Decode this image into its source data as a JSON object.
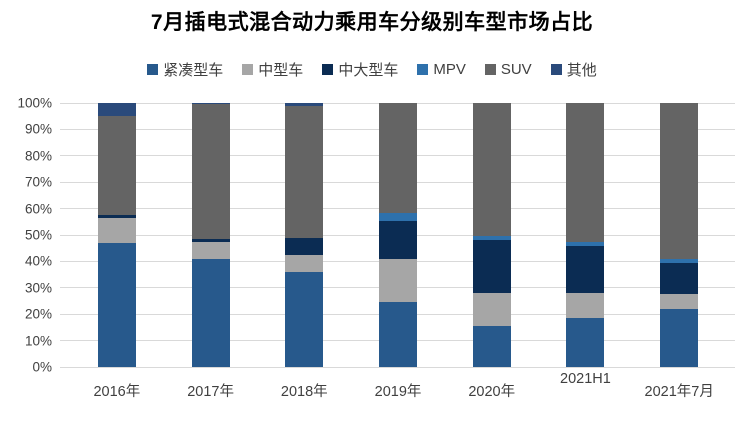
{
  "title": "7月插电式混合动力乘用车分级别车型市场占比",
  "colors": {
    "background": "#ffffff",
    "gridline": "#d9d9d9",
    "axis_text": "#404040",
    "title_text": "#000000"
  },
  "chart_data": {
    "type": "bar",
    "stacked": true,
    "title": "7月插电式混合动力乘用车分级别车型市场占比",
    "categories": [
      "2016年",
      "2017年",
      "2018年",
      "2019年",
      "2020年",
      "2021H1",
      "2021年7月"
    ],
    "series": [
      {
        "name": "紧凑型车",
        "color": "#27598C",
        "values": [
          47,
          41,
          36,
          24.5,
          15.5,
          18.5,
          22
        ]
      },
      {
        "name": "中型车",
        "color": "#A6A6A6",
        "values": [
          9.5,
          6.5,
          6.5,
          16.5,
          12.5,
          9.5,
          5.5
        ]
      },
      {
        "name": "中大型车",
        "color": "#0B2C53",
        "values": [
          1,
          1,
          6.5,
          14.5,
          20,
          18,
          12
        ]
      },
      {
        "name": "MPV",
        "color": "#2E71AC",
        "values": [
          0,
          0,
          0,
          3,
          1.5,
          1.5,
          1.5
        ]
      },
      {
        "name": "SUV",
        "color": "#646464",
        "values": [
          37.5,
          51,
          50,
          41.5,
          50.5,
          52.5,
          59
        ]
      },
      {
        "name": "其他",
        "color": "#2A4A7B",
        "values": [
          5,
          0.5,
          1,
          0,
          0,
          0,
          0
        ]
      }
    ],
    "xlabel": "",
    "ylabel": "",
    "ylim": [
      0,
      100
    ],
    "y_tick_step": 10,
    "y_ticks": [
      "100%",
      "90%",
      "80%",
      "70%",
      "60%",
      "50%",
      "40%",
      "30%",
      "20%",
      "10%",
      "0%"
    ],
    "grid": true,
    "legend_position": "top"
  }
}
